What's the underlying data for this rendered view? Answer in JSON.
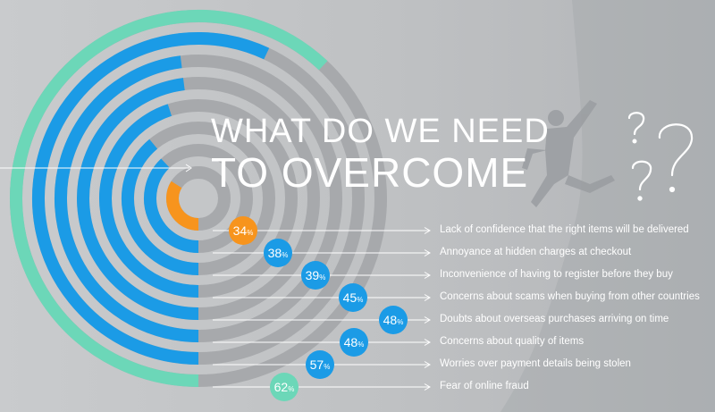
{
  "title": {
    "line1": "WHAT DO WE NEED",
    "line2": "TO OVERCOME"
  },
  "colors": {
    "blue": "#1b9be6",
    "orange": "#f7941d",
    "teal": "#6cd7b8",
    "track": "#a7a9ac",
    "background": "#c4c6c8",
    "label_text": "#ffffff"
  },
  "chart_data": {
    "type": "radial-bar",
    "unit": "%",
    "items": [
      {
        "value": 34,
        "label": "Lack of confidence that the right items will be delivered",
        "color": "orange"
      },
      {
        "value": 38,
        "label": "Annoyance at hidden charges at checkout",
        "color": "blue"
      },
      {
        "value": 39,
        "label": "Inconvenience of having to register before they buy",
        "color": "blue"
      },
      {
        "value": 45,
        "label": "Concerns about scams when buying from other countries",
        "color": "blue"
      },
      {
        "value": 48,
        "label": "Doubts about overseas purchases arriving on time",
        "color": "blue"
      },
      {
        "value": 48,
        "label": "Concerns about quality of items",
        "color": "blue"
      },
      {
        "value": 57,
        "label": "Worries over payment details being stolen",
        "color": "blue"
      },
      {
        "value": 62,
        "label": "Fear of online fraud",
        "color": "teal"
      }
    ]
  }
}
